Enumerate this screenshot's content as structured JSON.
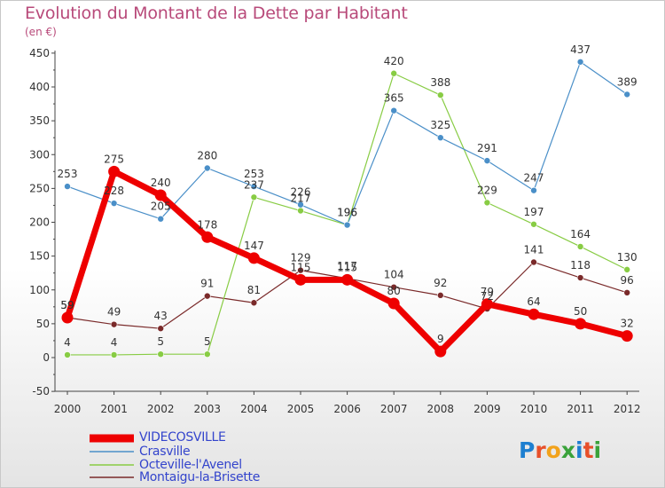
{
  "header": {
    "title": "Evolution du Montant de la Dette par Habitant",
    "unit": "(en €)"
  },
  "brand": {
    "logo_text": "Proxiti",
    "logo_letters": [
      {
        "ch": "P",
        "color": "#1e7fd0"
      },
      {
        "ch": "r",
        "color": "#e8502a"
      },
      {
        "ch": "o",
        "color": "#f2a21b"
      },
      {
        "ch": "x",
        "color": "#3aa23a"
      },
      {
        "ch": "i",
        "color": "#1e7fd0"
      },
      {
        "ch": "t",
        "color": "#e8502a"
      },
      {
        "ch": "i",
        "color": "#3aa23a"
      }
    ]
  },
  "chart_data": {
    "type": "line",
    "title": "Evolution du Montant de la Dette par Habitant",
    "ylabel": "(en €)",
    "xlabel": "",
    "x": [
      "2000",
      "2001",
      "2002",
      "2003",
      "2004",
      "2005",
      "2006",
      "2007",
      "2008",
      "2009",
      "2010",
      "2011",
      "2012"
    ],
    "ylim": [
      -50,
      450
    ],
    "yticks": [
      -50,
      0,
      50,
      100,
      150,
      200,
      250,
      300,
      350,
      400,
      450
    ],
    "grid": false,
    "legend_position": "bottom-left",
    "series": [
      {
        "name": "VIDECOSVILLE",
        "color": "#ee0000",
        "values": [
          59,
          275,
          240,
          178,
          147,
          115,
          115,
          80,
          9,
          79,
          64,
          50,
          32
        ],
        "labels": [
          "59",
          "275",
          "240",
          "178",
          "147",
          "115",
          "115",
          "80",
          "9",
          "79",
          "64",
          "50",
          "32"
        ]
      },
      {
        "name": "Crasville",
        "color": "#4a8fc8",
        "values": [
          253,
          228,
          205,
          280,
          253,
          226,
          196,
          365,
          325,
          291,
          247,
          437,
          389
        ],
        "labels": [
          "253",
          "228",
          "205",
          "280",
          "253",
          "226",
          "196",
          "365",
          "325",
          "291",
          "247",
          "437",
          "389"
        ]
      },
      {
        "name": "Octeville-l'Avenel",
        "color": "#88cc44",
        "values": [
          4,
          4,
          5,
          5,
          237,
          217,
          196,
          420,
          388,
          229,
          197,
          164,
          130
        ],
        "labels": [
          "4",
          "4",
          "5",
          "5",
          "237",
          "217",
          "196",
          "420",
          "388",
          "229",
          "197",
          "164",
          "130"
        ]
      },
      {
        "name": "Montaigu-la-Brisette",
        "color": "#7a2a2a",
        "values": [
          59,
          49,
          43,
          91,
          81,
          129,
          117,
          104,
          92,
          72,
          141,
          118,
          96
        ],
        "labels": [
          "59",
          "49",
          "43",
          "91",
          "81",
          "129",
          "117",
          "104",
          "92",
          "72",
          "141",
          "118",
          "96"
        ]
      }
    ]
  }
}
